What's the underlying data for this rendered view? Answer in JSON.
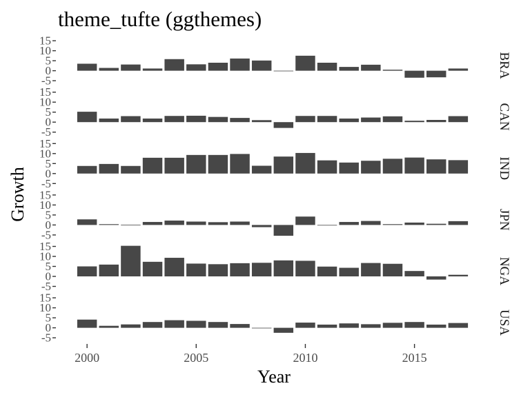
{
  "chart_data": {
    "type": "bar",
    "title": "theme_tufte (ggthemes)",
    "xlabel": "Year",
    "ylabel": "Growth",
    "x_ticks": [
      2000,
      2005,
      2010,
      2015
    ],
    "y_ticks": [
      15,
      10,
      5,
      0,
      -5
    ],
    "ylim": [
      -7,
      15
    ],
    "xlim": [
      1999.3,
      2017.7
    ],
    "years": [
      2000,
      2001,
      2002,
      2003,
      2004,
      2005,
      2006,
      2007,
      2008,
      2009,
      2010,
      2011,
      2012,
      2013,
      2014,
      2015,
      2016,
      2017
    ],
    "bar_color": "#474747",
    "grid": false,
    "facets": [
      {
        "name": "BRA",
        "values": [
          3.5,
          1.4,
          3.1,
          1.1,
          5.8,
          3.2,
          4.0,
          6.1,
          5.1,
          -0.1,
          7.5,
          4.0,
          1.9,
          3.0,
          0.5,
          -3.5,
          -3.3,
          1.1
        ]
      },
      {
        "name": "CAN",
        "values": [
          5.2,
          1.8,
          3.0,
          1.8,
          3.1,
          3.2,
          2.6,
          2.1,
          1.0,
          -2.9,
          3.1,
          3.1,
          1.8,
          2.3,
          2.9,
          0.7,
          1.1,
          3.0
        ]
      },
      {
        "name": "IND",
        "values": [
          3.8,
          4.8,
          3.8,
          7.9,
          7.9,
          9.3,
          9.3,
          9.8,
          3.9,
          8.5,
          10.3,
          6.6,
          5.5,
          6.4,
          7.4,
          8.0,
          7.1,
          6.7
        ]
      },
      {
        "name": "JPN",
        "values": [
          2.8,
          0.4,
          0.1,
          1.5,
          2.2,
          1.7,
          1.4,
          1.7,
          -1.1,
          -5.4,
          4.2,
          -0.1,
          1.5,
          2.0,
          0.4,
          1.2,
          0.6,
          1.9
        ]
      },
      {
        "name": "NGA",
        "values": [
          5.0,
          5.9,
          15.3,
          7.3,
          9.3,
          6.4,
          6.1,
          6.6,
          6.8,
          8.0,
          7.8,
          4.9,
          4.3,
          6.7,
          6.3,
          2.7,
          -1.6,
          0.8
        ]
      },
      {
        "name": "USA",
        "values": [
          4.1,
          1.0,
          1.7,
          2.9,
          3.8,
          3.5,
          2.9,
          1.9,
          -0.1,
          -2.5,
          2.6,
          1.6,
          2.2,
          1.8,
          2.5,
          2.9,
          1.6,
          2.4
        ]
      }
    ]
  }
}
